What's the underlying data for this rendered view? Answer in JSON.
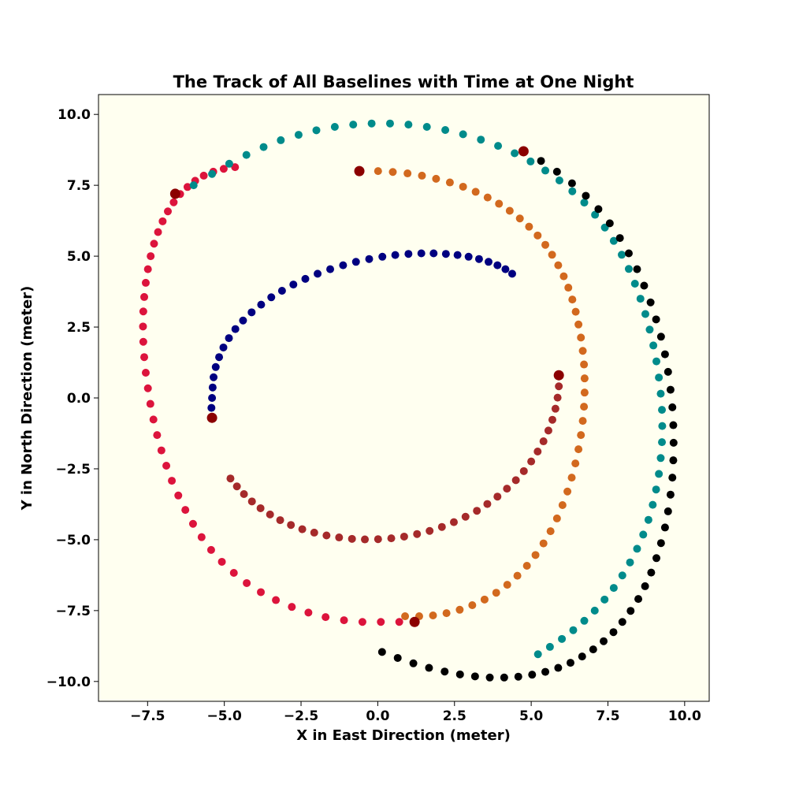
{
  "chart_data": {
    "type": "scatter",
    "title": "The Track of All Baselines with Time at One Night",
    "xlabel": "X in East Direction (meter)",
    "ylabel": "Y in North Direction (meter)",
    "xlim": [
      -9.1,
      10.8
    ],
    "ylim": [
      -10.7,
      10.7
    ],
    "xticks": [
      -7.5,
      -5.0,
      -2.5,
      0.0,
      2.5,
      5.0,
      7.5,
      10.0
    ],
    "yticks": [
      -10.0,
      -7.5,
      -5.0,
      -2.5,
      0.0,
      2.5,
      5.0,
      7.5,
      10.0
    ],
    "xtick_labels": [
      "−7.5",
      "−5.0",
      "−2.5",
      "0.0",
      "2.5",
      "5.0",
      "7.5",
      "10.0"
    ],
    "ytick_labels": [
      "−10.0",
      "−7.5",
      "−5.0",
      "−2.5",
      "0.0",
      "2.5",
      "5.0",
      "7.5",
      "10.0"
    ],
    "grid": false,
    "background_color": "#fffff0",
    "start_marker_color": "#8b0000",
    "series": [
      {
        "color": "#000080",
        "start": [
          -5.4,
          -0.7
        ],
        "x": [
          -5.4,
          -5.42,
          -5.4,
          -5.38,
          -5.35,
          -5.28,
          -5.17,
          -5.03,
          -4.85,
          -4.64,
          -4.39,
          -4.11,
          -3.8,
          -3.47,
          -3.12,
          -2.75,
          -2.36,
          -1.96,
          -1.55,
          -1.13,
          -0.71,
          -0.28,
          0.15,
          0.57,
          1.0,
          1.42,
          1.82,
          2.22,
          2.6,
          2.96,
          3.3,
          3.61,
          3.9,
          4.16,
          4.38
        ],
        "y": [
          -0.7,
          -0.35,
          0.0,
          0.37,
          0.73,
          1.09,
          1.44,
          1.78,
          2.11,
          2.43,
          2.73,
          3.02,
          3.29,
          3.55,
          3.78,
          4.0,
          4.2,
          4.38,
          4.54,
          4.68,
          4.8,
          4.9,
          4.98,
          5.04,
          5.08,
          5.1,
          5.1,
          5.08,
          5.04,
          4.98,
          4.9,
          4.8,
          4.68,
          4.54,
          4.38
        ]
      },
      {
        "color": "#a52a2a",
        "start": [
          5.9,
          0.8
        ],
        "x": [
          5.9,
          5.9,
          5.86,
          5.79,
          5.69,
          5.56,
          5.4,
          5.21,
          5.0,
          4.76,
          4.5,
          4.21,
          3.9,
          3.57,
          3.23,
          2.86,
          2.48,
          2.09,
          1.69,
          1.28,
          0.86,
          0.44,
          0.01,
          -0.42,
          -0.84,
          -1.26,
          -1.67,
          -2.07,
          -2.46,
          -2.83,
          -3.18,
          -3.51,
          -3.82,
          -4.1,
          -4.36,
          -4.59,
          -4.8
        ],
        "y": [
          0.8,
          0.41,
          0.01,
          -0.38,
          -0.77,
          -1.15,
          -1.53,
          -1.89,
          -2.24,
          -2.58,
          -2.9,
          -3.2,
          -3.48,
          -3.74,
          -3.98,
          -4.19,
          -4.38,
          -4.55,
          -4.69,
          -4.8,
          -4.89,
          -4.95,
          -4.98,
          -4.99,
          -4.97,
          -4.92,
          -4.85,
          -4.75,
          -4.63,
          -4.48,
          -4.31,
          -4.11,
          -3.89,
          -3.65,
          -3.39,
          -3.12,
          -2.84
        ]
      },
      {
        "color": "#dc143c",
        "start": [
          1.2,
          -7.9
        ],
        "x": [
          1.2,
          0.7,
          0.1,
          -0.5,
          -1.1,
          -1.7,
          -2.26,
          -2.8,
          -3.32,
          -3.81,
          -4.27,
          -4.69,
          -5.08,
          -5.43,
          -5.74,
          -6.02,
          -6.27,
          -6.5,
          -6.71,
          -6.89,
          -7.05,
          -7.19,
          -7.31,
          -7.41,
          -7.49,
          -7.56,
          -7.61,
          -7.64,
          -7.65,
          -7.64,
          -7.61,
          -7.56,
          -7.49,
          -7.4,
          -7.29,
          -7.16,
          -7.01,
          -6.84,
          -6.65,
          -6.44,
          -6.2,
          -5.95,
          -5.67,
          -5.36,
          -5.02,
          -4.65
        ],
        "y": [
          -7.9,
          -7.9,
          -7.9,
          -7.9,
          -7.84,
          -7.73,
          -7.57,
          -7.37,
          -7.13,
          -6.85,
          -6.53,
          -6.17,
          -5.78,
          -5.36,
          -4.91,
          -4.44,
          -3.95,
          -3.44,
          -2.92,
          -2.39,
          -1.85,
          -1.31,
          -0.76,
          -0.21,
          0.34,
          0.89,
          1.44,
          1.98,
          2.52,
          3.05,
          3.56,
          4.06,
          4.54,
          5.0,
          5.44,
          5.85,
          6.23,
          6.58,
          6.9,
          7.19,
          7.44,
          7.66,
          7.84,
          7.98,
          8.08,
          8.14
        ]
      },
      {
        "color": "#d2691e",
        "start": [
          -0.6,
          8.0
        ],
        "x": [
          -0.6,
          0.01,
          0.49,
          0.97,
          1.44,
          1.9,
          2.35,
          2.78,
          3.19,
          3.58,
          3.95,
          4.3,
          4.63,
          4.93,
          5.21,
          5.46,
          5.68,
          5.88,
          6.06,
          6.21,
          6.34,
          6.45,
          6.54,
          6.62,
          6.68,
          6.72,
          6.74,
          6.74,
          6.72,
          6.68,
          6.62,
          6.54,
          6.44,
          6.32,
          6.18,
          6.02,
          5.84,
          5.63,
          5.4,
          5.14,
          4.86,
          4.55,
          4.22,
          3.86,
          3.48,
          3.08,
          2.67,
          2.24,
          1.8,
          1.35,
          0.89
        ],
        "y": [
          8.0,
          8.0,
          7.97,
          7.92,
          7.84,
          7.73,
          7.6,
          7.45,
          7.27,
          7.07,
          6.85,
          6.6,
          6.33,
          6.04,
          5.73,
          5.4,
          5.05,
          4.68,
          4.29,
          3.89,
          3.47,
          3.04,
          2.59,
          2.13,
          1.66,
          1.18,
          0.69,
          0.19,
          -0.31,
          -0.81,
          -1.31,
          -1.81,
          -2.31,
          -2.81,
          -3.3,
          -3.78,
          -4.25,
          -4.7,
          -5.13,
          -5.54,
          -5.92,
          -6.27,
          -6.59,
          -6.87,
          -7.11,
          -7.31,
          -7.47,
          -7.59,
          -7.67,
          -7.7,
          -7.7
        ]
      },
      {
        "color": "#008b8b",
        "start": [
          -6.6,
          7.2
        ],
        "x": [
          -6.6,
          -6.0,
          -5.4,
          -4.84,
          -4.28,
          -3.72,
          -3.16,
          -2.58,
          -2.0,
          -1.4,
          -0.8,
          -0.2,
          0.4,
          1.0,
          1.6,
          2.2,
          2.78,
          3.36,
          3.92,
          4.46,
          4.98,
          5.46,
          5.92,
          6.34,
          6.73,
          7.08,
          7.4,
          7.69,
          7.95,
          8.18,
          8.38,
          8.56,
          8.72,
          8.86,
          8.98,
          9.08,
          9.16,
          9.22,
          9.26,
          9.27,
          9.26,
          9.22,
          9.16,
          9.07,
          8.96,
          8.82,
          8.65,
          8.45,
          8.22,
          7.97,
          7.69,
          7.39,
          7.07,
          6.73,
          6.37,
          6.0,
          5.61,
          5.22
        ],
        "y": [
          7.2,
          7.5,
          7.9,
          8.26,
          8.57,
          8.85,
          9.09,
          9.28,
          9.44,
          9.56,
          9.64,
          9.68,
          9.68,
          9.64,
          9.56,
          9.45,
          9.3,
          9.11,
          8.89,
          8.63,
          8.34,
          8.02,
          7.67,
          7.29,
          6.89,
          6.46,
          6.01,
          5.54,
          5.05,
          4.55,
          4.03,
          3.5,
          2.96,
          2.41,
          1.85,
          1.29,
          0.72,
          0.15,
          -0.42,
          -0.99,
          -1.56,
          -2.12,
          -2.68,
          -3.23,
          -3.77,
          -4.3,
          -4.82,
          -5.32,
          -5.8,
          -6.26,
          -6.7,
          -7.11,
          -7.5,
          -7.86,
          -8.19,
          -8.5,
          -8.78,
          -9.04
        ]
      },
      {
        "color": "#000000",
        "start": [
          4.75,
          8.7
        ],
        "x": [
          4.75,
          5.32,
          5.84,
          6.33,
          6.78,
          7.19,
          7.56,
          7.89,
          8.18,
          8.45,
          8.68,
          8.89,
          9.07,
          9.23,
          9.36,
          9.46,
          9.54,
          9.6,
          9.63,
          9.64,
          9.63,
          9.6,
          9.54,
          9.46,
          9.36,
          9.23,
          9.08,
          8.91,
          8.71,
          8.49,
          8.24,
          7.97,
          7.68,
          7.36,
          7.02,
          6.66,
          6.28,
          5.88,
          5.46,
          5.03,
          4.58,
          4.12,
          3.65,
          3.17,
          2.68,
          2.18,
          1.67,
          1.16,
          0.65,
          0.14
        ],
        "y": [
          8.7,
          8.36,
          7.98,
          7.57,
          7.13,
          6.66,
          6.16,
          5.64,
          5.1,
          4.54,
          3.96,
          3.37,
          2.77,
          2.16,
          1.54,
          0.92,
          0.29,
          -0.33,
          -0.96,
          -1.58,
          -2.2,
          -2.81,
          -3.41,
          -4.0,
          -4.57,
          -5.12,
          -5.65,
          -6.16,
          -6.64,
          -7.09,
          -7.51,
          -7.9,
          -8.26,
          -8.58,
          -8.87,
          -9.12,
          -9.34,
          -9.52,
          -9.66,
          -9.76,
          -9.83,
          -9.86,
          -9.86,
          -9.82,
          -9.75,
          -9.65,
          -9.52,
          -9.36,
          -9.17,
          -8.96
        ]
      }
    ]
  }
}
